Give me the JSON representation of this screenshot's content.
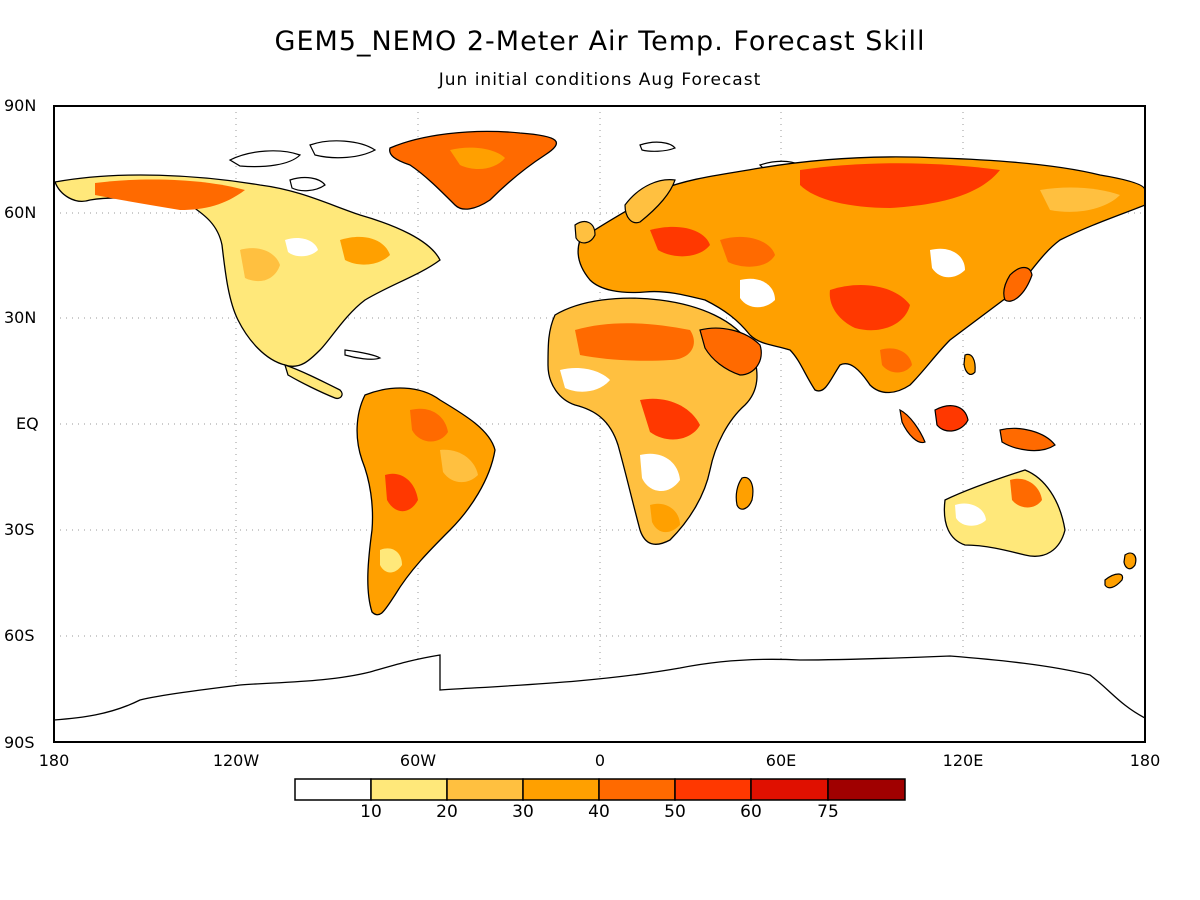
{
  "title": "GEM5_NEMO 2-Meter Air Temp. Forecast Skill",
  "subtitle": "Jun initial conditions  Aug Forecast",
  "y_axis_labels": [
    "90N",
    "60N",
    "30N",
    "EQ",
    "30S",
    "60S",
    "90S"
  ],
  "x_axis_labels": [
    "180",
    "120W",
    "60W",
    "0",
    "60E",
    "120E",
    "180"
  ],
  "colorbar": {
    "ticks": [
      "10",
      "20",
      "30",
      "40",
      "50",
      "60",
      "75"
    ],
    "colors": [
      "#ffffff",
      "#ffe87a",
      "#ffc040",
      "#ffa000",
      "#ff6a00",
      "#ff3800",
      "#e01000",
      "#a00000"
    ]
  }
}
